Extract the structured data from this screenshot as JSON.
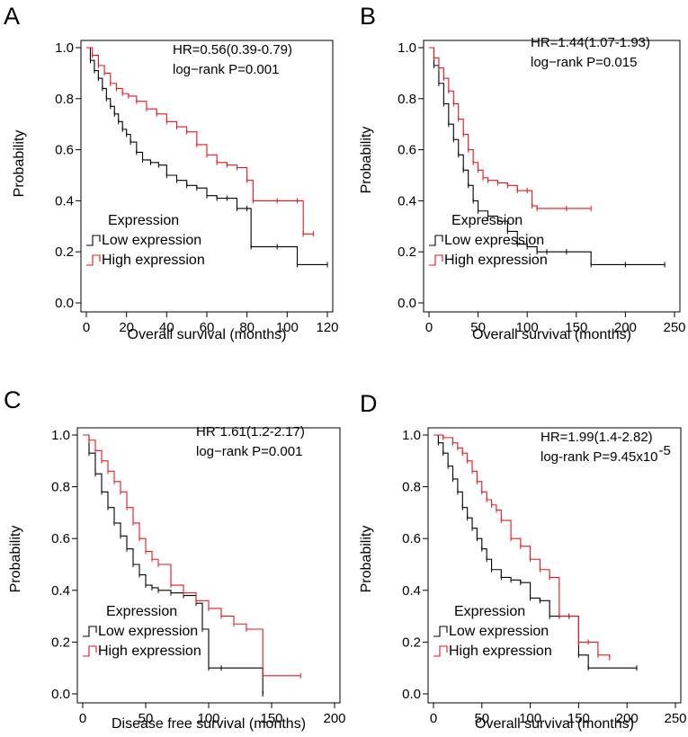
{
  "colors": {
    "low": "#000000",
    "high": "#e8141b",
    "axis": "#000000"
  },
  "chart_data": [
    {
      "panel": "A",
      "type": "line",
      "xlabel": "Overall survival (months)",
      "ylabel": "Probability",
      "xlim": [
        0,
        120
      ],
      "ylim": [
        0,
        1
      ],
      "xticks": [
        0,
        20,
        40,
        60,
        80,
        100,
        120
      ],
      "xtick_labels": [
        "0",
        "20",
        "40",
        "60",
        "80",
        "100",
        "120"
      ],
      "yticks": [
        0,
        0.2,
        0.4,
        0.6,
        0.8,
        1.0
      ],
      "ytick_labels": [
        "0.0",
        "0.2",
        "0.4",
        "0.6",
        "0.8",
        "1.0"
      ],
      "stats": [
        "HR=0.56(0.39-0.79)",
        "log−rank P=0.001"
      ],
      "legend_title": "Expression",
      "legend_position": "bottom-left",
      "series": [
        {
          "name": "Low expression",
          "color": "#000000",
          "x": [
            0,
            2,
            4,
            6,
            8,
            10,
            12,
            14,
            16,
            18,
            20,
            22,
            25,
            28,
            32,
            36,
            40,
            45,
            50,
            55,
            60,
            65,
            70,
            75,
            80,
            82,
            95,
            105,
            120
          ],
          "y": [
            1.0,
            0.95,
            0.91,
            0.88,
            0.84,
            0.8,
            0.77,
            0.74,
            0.71,
            0.68,
            0.66,
            0.63,
            0.59,
            0.56,
            0.55,
            0.54,
            0.5,
            0.48,
            0.46,
            0.45,
            0.42,
            0.41,
            0.41,
            0.37,
            0.37,
            0.22,
            0.22,
            0.15,
            0.15
          ]
        },
        {
          "name": "High expression",
          "color": "#e8141b",
          "x": [
            0,
            3,
            6,
            9,
            12,
            15,
            18,
            21,
            25,
            30,
            35,
            40,
            45,
            50,
            55,
            60,
            65,
            70,
            75,
            80,
            83,
            95,
            105,
            108,
            113
          ],
          "y": [
            1.0,
            0.97,
            0.93,
            0.9,
            0.86,
            0.84,
            0.82,
            0.81,
            0.79,
            0.76,
            0.74,
            0.71,
            0.69,
            0.67,
            0.62,
            0.58,
            0.55,
            0.54,
            0.53,
            0.48,
            0.4,
            0.4,
            0.4,
            0.27,
            0.27
          ]
        }
      ]
    },
    {
      "panel": "B",
      "type": "line",
      "xlabel": "Overall survival (months)",
      "ylabel": "Probability",
      "xlim": [
        0,
        250
      ],
      "ylim": [
        0,
        1
      ],
      "xticks": [
        0,
        50,
        100,
        150,
        200,
        250
      ],
      "xtick_labels": [
        "0",
        "50",
        "100",
        "150",
        "200",
        "250"
      ],
      "yticks": [
        0,
        0.2,
        0.4,
        0.6,
        0.8,
        1.0
      ],
      "ytick_labels": [
        "0.0",
        "0.2",
        "0.4",
        "0.6",
        "0.8",
        "1.0"
      ],
      "stats": [
        "HR=1.44(1.07-1.93)",
        "log−rank  P=0.015"
      ],
      "legend_title": "Expression",
      "legend_position": "bottom-left",
      "series": [
        {
          "name": "Low expression",
          "color": "#000000",
          "x": [
            0,
            5,
            10,
            15,
            20,
            25,
            30,
            35,
            40,
            45,
            50,
            60,
            70,
            80,
            90,
            100,
            110,
            120,
            140,
            165,
            200,
            240
          ],
          "y": [
            1.0,
            0.93,
            0.86,
            0.78,
            0.7,
            0.64,
            0.58,
            0.52,
            0.46,
            0.4,
            0.36,
            0.34,
            0.32,
            0.28,
            0.23,
            0.22,
            0.2,
            0.2,
            0.2,
            0.15,
            0.15,
            0.15
          ]
        },
        {
          "name": "High expression",
          "color": "#e8141b",
          "x": [
            0,
            5,
            10,
            15,
            20,
            25,
            30,
            35,
            40,
            45,
            50,
            55,
            60,
            70,
            80,
            90,
            100,
            105,
            110,
            140,
            165
          ],
          "y": [
            1.0,
            0.96,
            0.92,
            0.88,
            0.83,
            0.78,
            0.72,
            0.66,
            0.6,
            0.55,
            0.52,
            0.49,
            0.48,
            0.47,
            0.46,
            0.44,
            0.44,
            0.38,
            0.37,
            0.37,
            0.37
          ]
        }
      ]
    },
    {
      "panel": "C",
      "type": "line",
      "xlabel": "Disease free survival (months)",
      "ylabel": "Probability",
      "xlim": [
        0,
        200
      ],
      "ylim": [
        0,
        1
      ],
      "xticks": [
        0,
        50,
        100,
        150,
        200
      ],
      "xtick_labels": [
        "0",
        "50",
        "100",
        "150",
        "200"
      ],
      "yticks": [
        0,
        0.2,
        0.4,
        0.6,
        0.8,
        1.0
      ],
      "ytick_labels": [
        "0.0",
        "0.2",
        "0.4",
        "0.6",
        "0.8",
        "1.0"
      ],
      "stats": [
        "HRˉ1.61(1.2-2.17)",
        "log−rank P=0.001"
      ],
      "legend_title": "Expression",
      "legend_position": "bottom-left",
      "series": [
        {
          "name": "Low expression",
          "color": "#000000",
          "x": [
            0,
            5,
            10,
            15,
            20,
            25,
            30,
            35,
            40,
            45,
            50,
            55,
            60,
            70,
            80,
            90,
            95,
            100,
            110,
            143
          ],
          "y": [
            1.0,
            0.93,
            0.85,
            0.78,
            0.72,
            0.66,
            0.61,
            0.56,
            0.5,
            0.46,
            0.42,
            0.41,
            0.4,
            0.39,
            0.38,
            0.35,
            0.25,
            0.1,
            0.1,
            0.0
          ]
        },
        {
          "name": "High expression",
          "color": "#e8141b",
          "x": [
            0,
            5,
            10,
            15,
            20,
            25,
            30,
            35,
            40,
            45,
            50,
            55,
            60,
            70,
            80,
            90,
            100,
            110,
            120,
            130,
            143,
            173
          ],
          "y": [
            1.0,
            0.98,
            0.94,
            0.9,
            0.86,
            0.82,
            0.78,
            0.72,
            0.66,
            0.6,
            0.55,
            0.52,
            0.5,
            0.42,
            0.39,
            0.36,
            0.33,
            0.3,
            0.27,
            0.25,
            0.07,
            0.07
          ]
        }
      ]
    },
    {
      "panel": "D",
      "type": "line",
      "xlabel": "Overall survival (months)",
      "ylabel": "Probability",
      "xlim": [
        0,
        250
      ],
      "ylim": [
        0,
        1
      ],
      "xticks": [
        0,
        50,
        100,
        150,
        200,
        250
      ],
      "xtick_labels": [
        "0",
        "50",
        "100",
        "150",
        "200",
        "250"
      ],
      "yticks": [
        0,
        0.2,
        0.4,
        0.6,
        0.8,
        1.0
      ],
      "ytick_labels": [
        "0.0",
        "0.2",
        "0.4",
        "0.6",
        "0.8",
        "1.0"
      ],
      "stats": [
        "HR=1.99(1.4-2.82)",
        "log-rank P=9.45x10",
        "-5"
      ],
      "legend_title": "Expression",
      "legend_position": "bottom-left",
      "series": [
        {
          "name": "Low expression",
          "color": "#000000",
          "x": [
            0,
            5,
            10,
            15,
            20,
            25,
            30,
            35,
            40,
            45,
            50,
            55,
            60,
            70,
            80,
            90,
            100,
            110,
            120,
            130,
            140,
            150,
            160,
            210
          ],
          "y": [
            1.0,
            0.97,
            0.93,
            0.88,
            0.83,
            0.78,
            0.72,
            0.68,
            0.64,
            0.6,
            0.56,
            0.52,
            0.48,
            0.45,
            0.44,
            0.43,
            0.37,
            0.36,
            0.3,
            0.3,
            0.3,
            0.15,
            0.1,
            0.1
          ]
        },
        {
          "name": "High expression",
          "color": "#e8141b",
          "x": [
            0,
            10,
            20,
            25,
            30,
            35,
            40,
            45,
            50,
            55,
            60,
            65,
            70,
            80,
            90,
            100,
            110,
            120,
            130,
            140,
            150,
            160,
            170,
            182
          ],
          "y": [
            1.0,
            0.99,
            0.97,
            0.95,
            0.93,
            0.9,
            0.86,
            0.82,
            0.78,
            0.75,
            0.73,
            0.71,
            0.67,
            0.6,
            0.57,
            0.52,
            0.48,
            0.45,
            0.3,
            0.3,
            0.2,
            0.2,
            0.15,
            0.14
          ]
        }
      ]
    }
  ]
}
